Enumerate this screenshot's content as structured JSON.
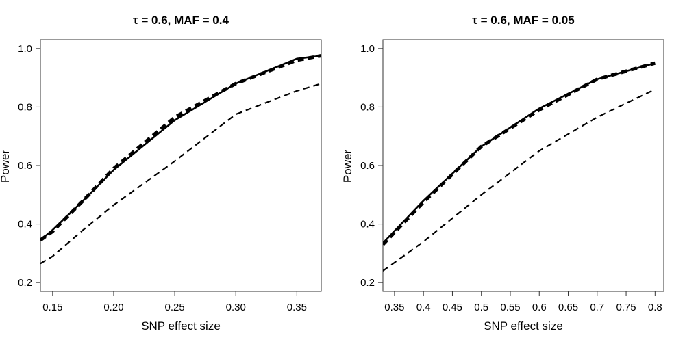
{
  "chart_data": [
    {
      "type": "line",
      "title": "τ = 0.6, MAF = 0.4",
      "xlabel": "SNP effect size",
      "ylabel": "Power",
      "xlim": [
        0.14,
        0.37
      ],
      "ylim": [
        0.17,
        1.03
      ],
      "xticks": [
        0.15,
        0.2,
        0.25,
        0.3,
        0.35
      ],
      "xtick_labels": [
        "0.15",
        "0.20",
        "0.25",
        "0.30",
        "0.35"
      ],
      "yticks": [
        0.2,
        0.4,
        0.6,
        0.8,
        1.0
      ],
      "ytick_labels": [
        "0.2",
        "0.4",
        "0.6",
        "0.8",
        "1.0"
      ],
      "grid": false,
      "series": [
        {
          "style": "solid",
          "x": [
            0.14,
            0.15,
            0.175,
            0.2,
            0.25,
            0.3,
            0.35,
            0.37
          ],
          "y": [
            0.345,
            0.38,
            0.48,
            0.585,
            0.755,
            0.88,
            0.965,
            0.975
          ]
        },
        {
          "style": "dashed-thick",
          "x": [
            0.14,
            0.15,
            0.175,
            0.2,
            0.25,
            0.3,
            0.35,
            0.37
          ],
          "y": [
            0.345,
            0.375,
            0.48,
            0.59,
            0.765,
            0.88,
            0.96,
            0.975
          ]
        },
        {
          "style": "dashed",
          "x": [
            0.14,
            0.15,
            0.175,
            0.2,
            0.25,
            0.3,
            0.35,
            0.37
          ],
          "y": [
            0.265,
            0.29,
            0.38,
            0.465,
            0.615,
            0.775,
            0.855,
            0.88
          ]
        }
      ]
    },
    {
      "type": "line",
      "title": "τ = 0.6, MAF = 0.05",
      "xlabel": "SNP effect size",
      "ylabel": "Power",
      "xlim": [
        0.33,
        0.815
      ],
      "ylim": [
        0.17,
        1.03
      ],
      "xticks": [
        0.35,
        0.4,
        0.45,
        0.5,
        0.55,
        0.6,
        0.65,
        0.7,
        0.75,
        0.8
      ],
      "xtick_labels": [
        "0.35",
        "0.4",
        "0.45",
        "0.5",
        "0.55",
        "0.6",
        "0.65",
        "0.7",
        "0.75",
        "0.8"
      ],
      "yticks": [
        0.2,
        0.4,
        0.6,
        0.8,
        1.0
      ],
      "ytick_labels": [
        "0.2",
        "0.4",
        "0.6",
        "0.8",
        "1.0"
      ],
      "grid": false,
      "series": [
        {
          "style": "solid",
          "x": [
            0.33,
            0.4,
            0.5,
            0.6,
            0.7,
            0.8
          ],
          "y": [
            0.335,
            0.48,
            0.665,
            0.795,
            0.895,
            0.95
          ]
        },
        {
          "style": "dashed-thick",
          "x": [
            0.33,
            0.4,
            0.5,
            0.6,
            0.7,
            0.8
          ],
          "y": [
            0.33,
            0.475,
            0.665,
            0.79,
            0.895,
            0.95
          ]
        },
        {
          "style": "dashed",
          "x": [
            0.33,
            0.4,
            0.5,
            0.6,
            0.7,
            0.8
          ],
          "y": [
            0.24,
            0.34,
            0.5,
            0.65,
            0.765,
            0.86
          ]
        }
      ]
    }
  ]
}
